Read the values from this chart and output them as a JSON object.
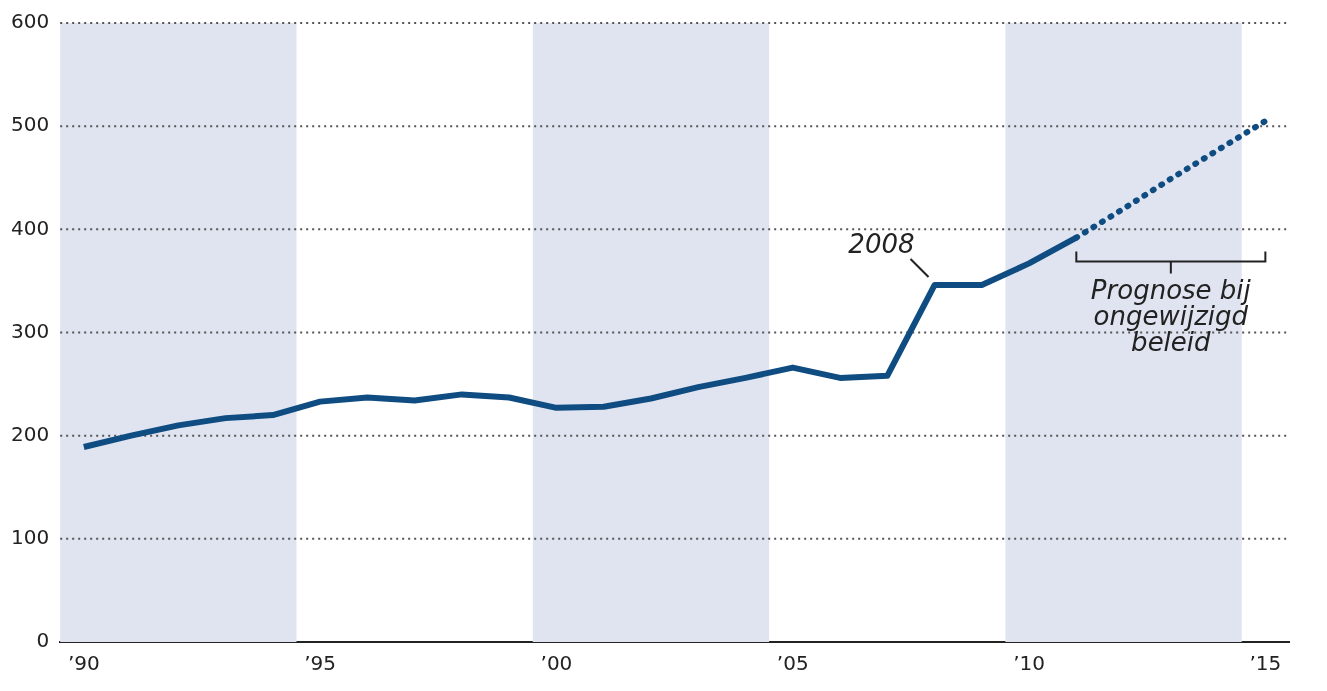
{
  "chart_data": {
    "type": "line",
    "xlim": [
      1989.5,
      2015.5
    ],
    "ylim": [
      0,
      600
    ],
    "xticks": [
      {
        "value": 1990,
        "label": "’90"
      },
      {
        "value": 1995,
        "label": "’95"
      },
      {
        "value": 2000,
        "label": "’00"
      },
      {
        "value": 2005,
        "label": "’05"
      },
      {
        "value": 2010,
        "label": "’10"
      },
      {
        "value": 2015,
        "label": "’15"
      }
    ],
    "yticks": [
      0,
      100,
      200,
      300,
      400,
      500,
      600
    ],
    "grid": "y",
    "legend": false,
    "marker": "none",
    "series": [
      {
        "color": "#0f4c81",
        "line_style": "solid",
        "x": [
          1990,
          1991,
          1992,
          1993,
          1994,
          1995,
          1996,
          1997,
          1998,
          1999,
          2000,
          2001,
          2002,
          2003,
          2004,
          2005,
          2006,
          2007,
          2008,
          2009,
          2010,
          2011
        ],
        "values": [
          189,
          200,
          210,
          217,
          220,
          233,
          237,
          234,
          240,
          237,
          227,
          228,
          236,
          247,
          256,
          266,
          256,
          258,
          346,
          346,
          367,
          392
        ]
      },
      {
        "color": "#0f4c81",
        "line_style": "dotted",
        "x": [
          2011,
          2012,
          2013,
          2014,
          2015
        ],
        "values": [
          392,
          420,
          449,
          477,
          505
        ]
      }
    ],
    "bands": [
      {
        "axis": "x",
        "from": 1989.5,
        "to": 1994.5,
        "color": "#dfe4f0"
      },
      {
        "axis": "x",
        "from": 1999.5,
        "to": 2004.5,
        "color": "#dfe4f0"
      },
      {
        "axis": "x",
        "from": 2009.5,
        "to": 2014.5,
        "color": "#dfe4f0"
      }
    ],
    "annotations": [
      {
        "text": "2008",
        "x": 2008,
        "y": 346
      },
      "Prognose bij ongewijzigd beleid"
    ]
  }
}
